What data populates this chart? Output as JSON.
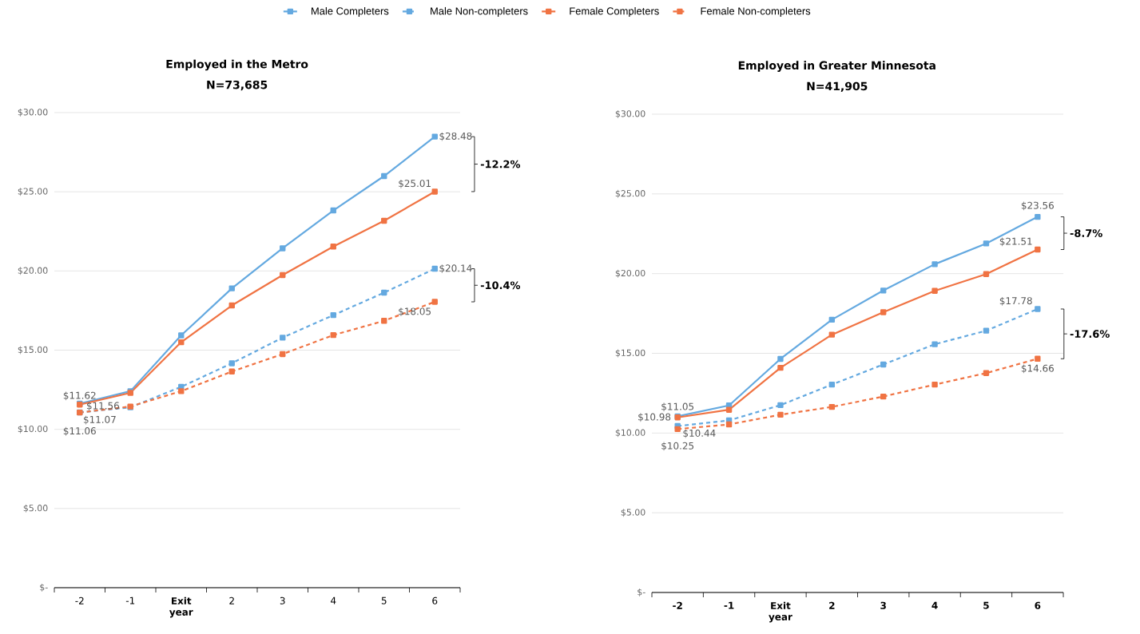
{
  "chart_data": [
    {
      "type": "line",
      "title": "Employed in the Metro",
      "subtitle": "N=73,685",
      "categories": [
        "-2",
        "-1",
        "**Exit year**",
        "2",
        "3",
        "4",
        "5",
        "6"
      ],
      "ylim": [
        0,
        30
      ],
      "yticks": [
        {
          "value": 0,
          "label": "$-"
        },
        {
          "value": 5,
          "label": "$5.00"
        },
        {
          "value": 10,
          "label": "$10.00"
        },
        {
          "value": 15,
          "label": "$15.00"
        },
        {
          "value": 20,
          "label": "$20.00"
        },
        {
          "value": 25,
          "label": "$25.00"
        },
        {
          "value": 30,
          "label": "$30.00"
        }
      ],
      "grid": "y",
      "legend": "top",
      "marker": "square",
      "series": [
        {
          "name": "Male Completers",
          "color": "#64a9e0",
          "line_style": "solid",
          "values": [
            11.62,
            12.41,
            15.93,
            18.9,
            21.43,
            23.82,
            25.99,
            28.48
          ],
          "value_labels": [
            "$11.62",
            null,
            null,
            null,
            null,
            null,
            null,
            "$28.48"
          ]
        },
        {
          "name": "Male Non-completers",
          "color": "#64a9e0",
          "line_style": "dashed",
          "values": [
            11.07,
            11.39,
            12.68,
            14.17,
            15.79,
            17.21,
            18.63,
            20.14
          ],
          "value_labels": [
            "$11.07",
            null,
            null,
            null,
            null,
            null,
            null,
            "$20.14"
          ]
        },
        {
          "name": "Female Completers",
          "color": "#f07343",
          "line_style": "solid",
          "values": [
            11.56,
            12.3,
            15.5,
            17.82,
            19.74,
            21.54,
            23.17,
            25.01
          ],
          "value_labels": [
            "$11.56",
            null,
            null,
            null,
            null,
            null,
            null,
            "$25.01"
          ]
        },
        {
          "name": "Female Non-completers",
          "color": "#f07343",
          "line_style": "dashed",
          "values": [
            11.06,
            11.44,
            12.41,
            13.65,
            14.75,
            15.95,
            16.85,
            18.05
          ],
          "value_labels": [
            "$11.06",
            null,
            null,
            null,
            null,
            null,
            null,
            "$18.05"
          ]
        }
      ],
      "annotations": [
        "-12.2%",
        "-10.4%"
      ]
    },
    {
      "type": "line",
      "title": "Employed in Greater Minnesota",
      "subtitle": "N=41,905",
      "categories": [
        "-2",
        "-1",
        "Exit year",
        "2",
        "3",
        "4",
        "5",
        "6"
      ],
      "ylim": [
        0,
        30
      ],
      "yticks": [
        {
          "value": 0,
          "label": "$-"
        },
        {
          "value": 5,
          "label": "$5.00"
        },
        {
          "value": 10,
          "label": "$10.00"
        },
        {
          "value": 15,
          "label": "$15.00"
        },
        {
          "value": 20,
          "label": "$20.00"
        },
        {
          "value": 25,
          "label": "$25.00"
        },
        {
          "value": 30,
          "label": "$30.00"
        }
      ],
      "grid": "y",
      "marker": "square",
      "series": [
        {
          "color": "#64a9e0",
          "line_style": "solid",
          "values": [
            11.05,
            11.73,
            14.65,
            17.11,
            18.94,
            20.59,
            21.89,
            23.56
          ],
          "value_labels": [
            "$11.05",
            null,
            null,
            null,
            null,
            null,
            null,
            "$23.56"
          ]
        },
        {
          "color": "#64a9e0",
          "line_style": "dashed",
          "values": [
            10.44,
            10.79,
            11.75,
            13.04,
            14.3,
            15.57,
            16.42,
            17.78
          ],
          "value_labels": [
            "$10.44",
            null,
            null,
            null,
            null,
            null,
            null,
            "$17.78"
          ]
        },
        {
          "color": "#f07343",
          "line_style": "solid",
          "values": [
            10.98,
            11.46,
            14.09,
            16.17,
            17.58,
            18.92,
            19.97,
            21.51
          ],
          "value_labels": [
            "$10.98",
            null,
            null,
            null,
            null,
            null,
            null,
            "$21.51"
          ]
        },
        {
          "color": "#f07343",
          "line_style": "dashed",
          "values": [
            10.25,
            10.54,
            11.15,
            11.64,
            12.29,
            13.04,
            13.76,
            14.66
          ],
          "value_labels": [
            "$10.25",
            null,
            null,
            null,
            null,
            null,
            null,
            "$14.66"
          ]
        }
      ],
      "annotations": [
        "-8.7%",
        "-17.6%"
      ]
    }
  ]
}
